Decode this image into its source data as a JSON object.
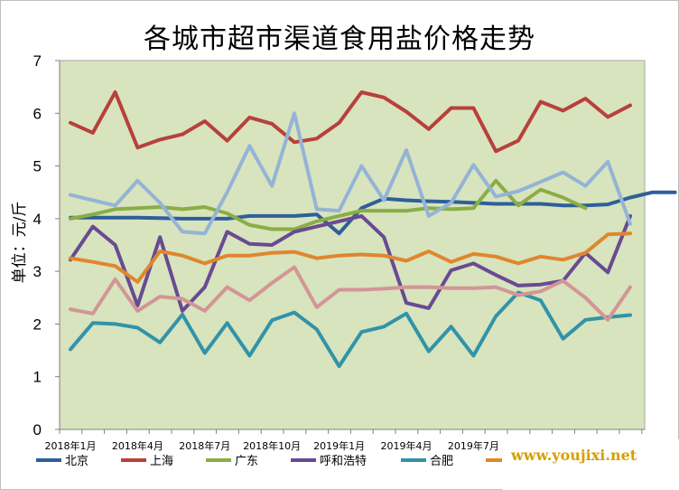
{
  "chart_data": {
    "type": "line",
    "title": "各城市超市渠道食用盐价格走势",
    "ylabel": "单位：元/斤",
    "ylim": [
      0,
      7
    ],
    "yticks": [
      "0",
      "1",
      "2",
      "3",
      "4",
      "5",
      "6",
      "7"
    ],
    "xtick_labels": [
      {
        "index": 0,
        "label": "2018年1月"
      },
      {
        "index": 3,
        "label": "2018年4月"
      },
      {
        "index": 6,
        "label": "2018年7月"
      },
      {
        "index": 9,
        "label": "2018年10月"
      },
      {
        "index": 12,
        "label": "2019年1月"
      },
      {
        "index": 15,
        "label": "2019年4月"
      },
      {
        "index": 18,
        "label": "2019年7月"
      }
    ],
    "grid": false,
    "legend_position": "bottom",
    "plot_background": "#d7e4bd",
    "series": [
      {
        "name": "北京",
        "color": "#2e5f9b",
        "values": [
          4.02,
          4.02,
          4.02,
          4.02,
          4.01,
          4.0,
          4.0,
          4.0,
          4.05,
          4.05,
          4.05,
          4.08,
          3.72,
          4.2,
          4.38,
          4.35,
          4.33,
          4.32,
          4.3,
          4.28,
          4.28,
          4.28,
          4.25,
          4.25,
          4.27,
          4.4,
          4.5,
          4.5
        ]
      },
      {
        "name": "上海",
        "color": "#b8403b",
        "values": [
          5.82,
          5.63,
          6.4,
          5.35,
          5.5,
          5.6,
          5.85,
          5.48,
          5.92,
          5.8,
          5.45,
          5.52,
          5.82,
          6.4,
          6.3,
          6.03,
          5.7,
          6.1,
          6.1,
          5.28,
          5.48,
          6.22,
          6.05,
          6.28,
          5.93,
          6.15
        ]
      },
      {
        "name": "广东",
        "color": "#8bad45",
        "values": [
          4.0,
          4.08,
          4.18,
          4.2,
          4.22,
          4.18,
          4.22,
          4.1,
          3.88,
          3.8,
          3.8,
          3.95,
          4.05,
          4.15,
          4.15,
          4.15,
          4.2,
          4.18,
          4.2,
          4.72,
          4.25,
          4.55,
          4.4,
          4.2
        ]
      },
      {
        "name": "呼和浩特",
        "color": "#6a4a92",
        "values": [
          3.22,
          3.85,
          3.5,
          2.35,
          3.65,
          2.25,
          2.7,
          3.75,
          3.52,
          3.5,
          3.75,
          3.85,
          3.95,
          4.05,
          3.65,
          2.4,
          2.3,
          3.02,
          3.15,
          2.93,
          2.73,
          2.75,
          2.82,
          3.35,
          2.98,
          4.05
        ]
      },
      {
        "name": "合肥",
        "color": "#3293a8",
        "values": [
          1.52,
          2.02,
          2.0,
          1.93,
          1.65,
          2.18,
          1.45,
          2.02,
          1.4,
          2.07,
          2.22,
          1.9,
          1.2,
          1.85,
          1.95,
          2.2,
          1.48,
          1.95,
          1.4,
          2.15,
          2.6,
          2.45,
          1.72,
          2.08,
          2.13,
          2.17
        ]
      },
      {
        "name": "重庆",
        "color": "#e0862e",
        "values": [
          3.25,
          3.18,
          3.1,
          2.8,
          3.38,
          3.3,
          3.15,
          3.3,
          3.3,
          3.35,
          3.37,
          3.25,
          3.3,
          3.32,
          3.3,
          3.2,
          3.38,
          3.18,
          3.33,
          3.28,
          3.15,
          3.28,
          3.22,
          3.35,
          3.7,
          3.72
        ]
      },
      {
        "name": "",
        "color": "#d39596",
        "values": [
          2.28,
          2.2,
          2.85,
          2.25,
          2.52,
          2.48,
          2.25,
          2.7,
          2.45,
          2.78,
          3.08,
          2.32,
          2.65,
          2.65,
          2.67,
          2.7,
          2.7,
          2.68,
          2.68,
          2.7,
          2.55,
          2.62,
          2.82,
          2.5,
          2.08,
          2.7
        ]
      },
      {
        "name": "",
        "color": "#95b3d7",
        "values": [
          4.45,
          4.35,
          4.25,
          4.72,
          4.3,
          3.75,
          3.72,
          4.5,
          5.38,
          4.62,
          6.0,
          4.18,
          4.15,
          5.0,
          4.35,
          5.3,
          4.05,
          4.3,
          5.02,
          4.42,
          4.52,
          4.7,
          4.88,
          4.62,
          5.08,
          3.9
        ]
      }
    ]
  },
  "watermark": {
    "text": "www.youjixi.net"
  }
}
